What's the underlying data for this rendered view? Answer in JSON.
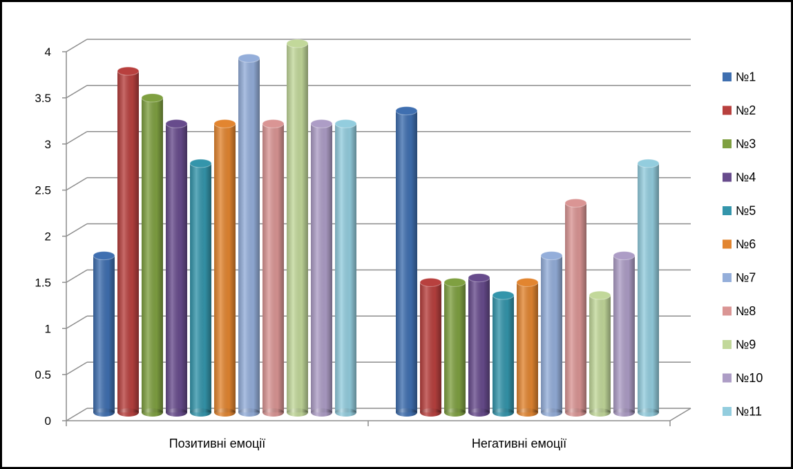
{
  "chart_data": {
    "type": "bar",
    "categories": [
      "Позитивні емоції",
      "Негативні емоції"
    ],
    "series": [
      {
        "name": "№1",
        "values": [
          1.7,
          3.27
        ],
        "color": "#3F6FB0"
      },
      {
        "name": "№2",
        "values": [
          3.7,
          1.41
        ],
        "color": "#B8403E"
      },
      {
        "name": "№3",
        "values": [
          3.41,
          1.41
        ],
        "color": "#7FA041"
      },
      {
        "name": "№4",
        "values": [
          3.13,
          1.46
        ],
        "color": "#674B8C"
      },
      {
        "name": "№5",
        "values": [
          2.7,
          1.27
        ],
        "color": "#3495AB"
      },
      {
        "name": "№6",
        "values": [
          3.13,
          1.41
        ],
        "color": "#E28530"
      },
      {
        "name": "№7",
        "values": [
          3.84,
          1.7
        ],
        "color": "#94AEDA"
      },
      {
        "name": "№8",
        "values": [
          3.13,
          2.27
        ],
        "color": "#DA9594"
      },
      {
        "name": "№9",
        "values": [
          4.0,
          1.27
        ],
        "color": "#C2D89A"
      },
      {
        "name": "№10",
        "values": [
          3.13,
          1.7
        ],
        "color": "#AD9DC6"
      },
      {
        "name": "№11",
        "values": [
          3.13,
          2.7
        ],
        "color": "#93CDDE"
      }
    ],
    "yticks": [
      "0",
      "0.5",
      "1",
      "1.5",
      "2",
      "2.5",
      "3",
      "3.5",
      "4"
    ],
    "ylim": [
      0,
      4
    ],
    "title": "",
    "xlabel": "",
    "ylabel": "",
    "grid": true,
    "legend": "right",
    "style": "3d-cylinder"
  }
}
